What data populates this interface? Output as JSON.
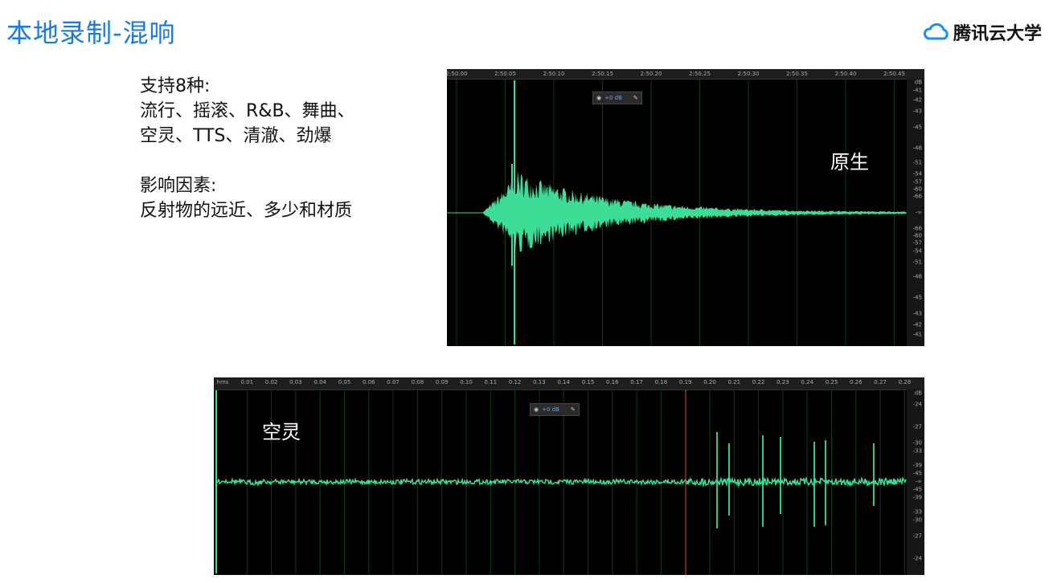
{
  "slide_title": "本地录制-混响",
  "logo": {
    "text": "腾讯云大学",
    "icon": "cloud-icon",
    "color": "#1a8cff"
  },
  "body": {
    "types_heading": "支持8种:",
    "types_line1": "流行、摇滚、R&B、舞曲、",
    "types_line2": "空灵、TTS、清澈、劲爆",
    "factors_heading": "影响因素:",
    "factors_line": "反射物的远近、多少和材质"
  },
  "waveform_original": {
    "label": "原生",
    "time_ticks": [
      "2:50.00",
      "2:50.05",
      "2:50.10",
      "2:50.15",
      "2:50.20",
      "2:50.25",
      "2:50.30",
      "2:50.35",
      "2:50.40",
      "2:50.45"
    ],
    "db_unit": "dB",
    "db_ticks": [
      "-41",
      "-42",
      "-43",
      "-45",
      "-48",
      "-51",
      "-54",
      "-57",
      "-60",
      "-66",
      "-∞",
      "-66",
      "-60",
      "-57",
      "-54",
      "-51",
      "-48",
      "-45",
      "-43",
      "-42",
      "-41"
    ],
    "hud_gain": "+0 dB",
    "wave_color": "#3ddc97"
  },
  "waveform_ethereal": {
    "label": "空灵",
    "time_ticks": [
      "hms",
      "0.01",
      "0.02",
      "0.03",
      "0.04",
      "0.05",
      "0.06",
      "0.07",
      "0.08",
      "0.09",
      "0.10",
      "0.11",
      "0.12",
      "0.13",
      "0.14",
      "0.15",
      "0.16",
      "0.17",
      "0.18",
      "0.19",
      "0.20",
      "0.21",
      "0.22",
      "0.23",
      "0.24",
      "0.25",
      "0.26",
      "0.27",
      "0.28"
    ],
    "db_unit": "dB",
    "db_ticks": [
      "-24",
      "-27",
      "-30",
      "-33",
      "-39",
      "-45",
      "-∞",
      "-45",
      "-39",
      "-33",
      "-30",
      "-27",
      "-24"
    ],
    "hud_gain": "+0 dB",
    "wave_color": "#3ddc97",
    "playhead_color": "#e03030"
  }
}
